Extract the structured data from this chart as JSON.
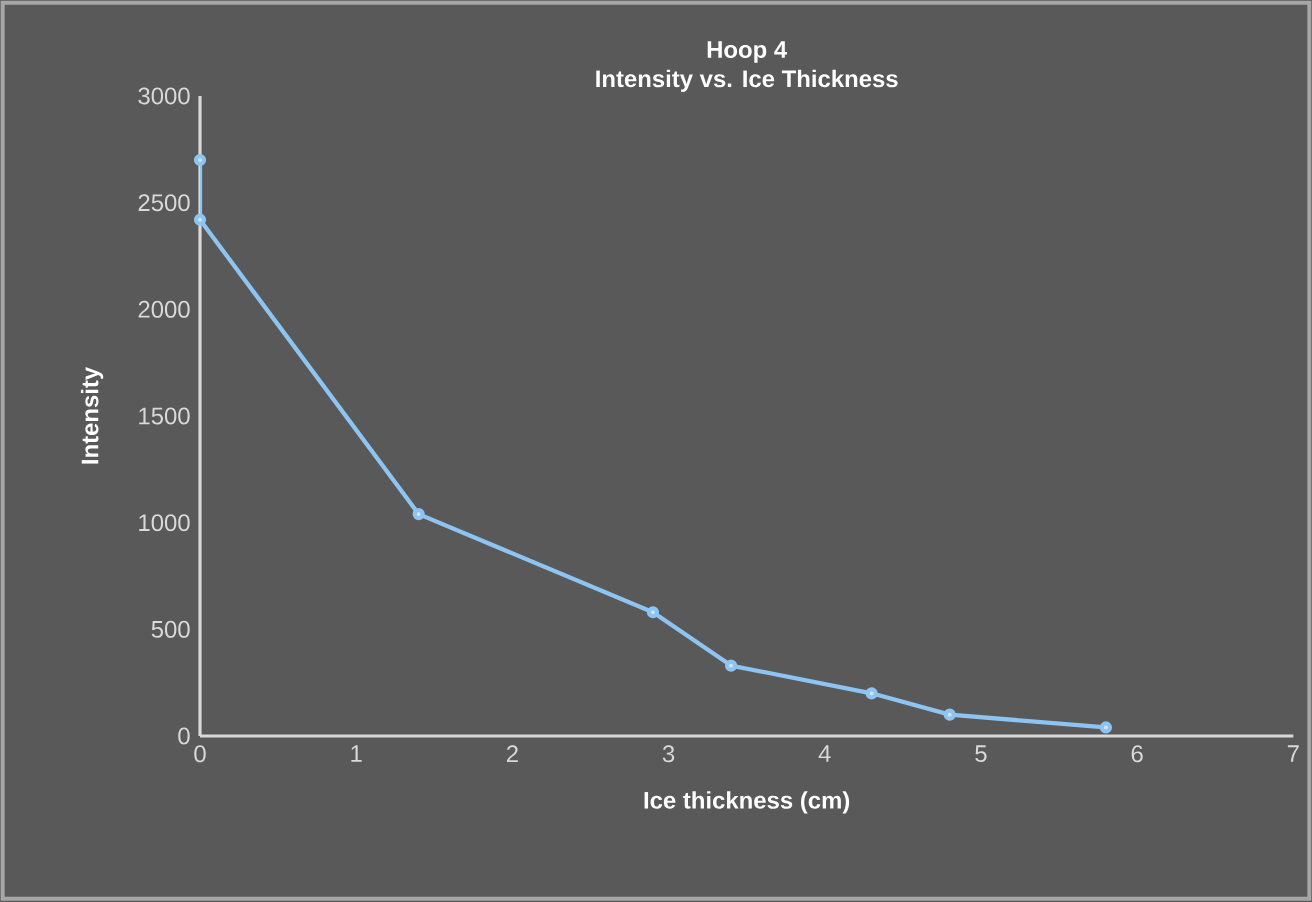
{
  "chart_data": {
    "type": "line",
    "title": "Hoop 4",
    "subtitle": "Intensity vs. Ice Thickness",
    "xlabel": "Ice thickness (cm)",
    "ylabel": "Intensity",
    "x": [
      0,
      0,
      1.4,
      2.9,
      3.4,
      4.3,
      4.8,
      5.8
    ],
    "values": [
      2700,
      2420,
      1040,
      580,
      330,
      200,
      100,
      40
    ],
    "color": "#8ec4f2",
    "marker": "circle",
    "line_style": "solid",
    "xlim": [
      0,
      7
    ],
    "xticks": [
      0,
      1,
      2,
      3,
      4,
      5,
      6,
      7
    ],
    "ylim": [
      0,
      3000
    ],
    "yticks": [
      0,
      500,
      1000,
      1500,
      2000,
      2500,
      3000
    ]
  }
}
